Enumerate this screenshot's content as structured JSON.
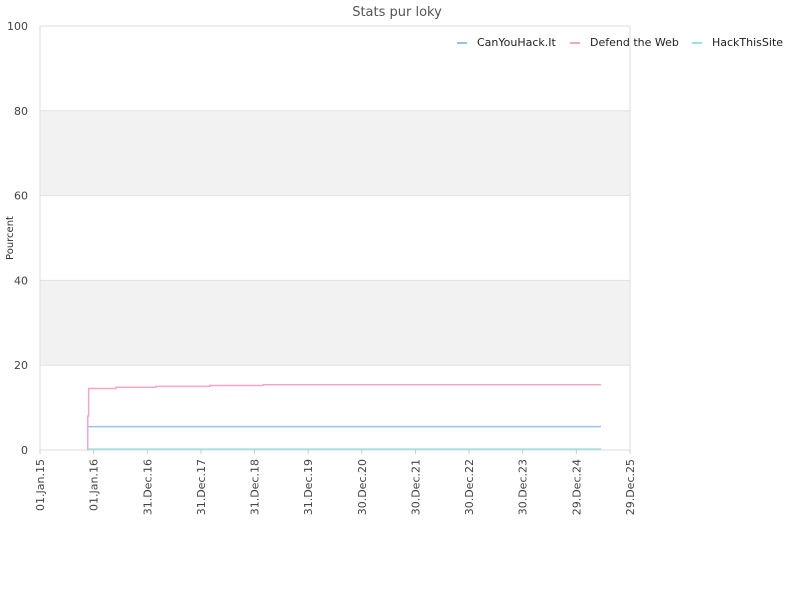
{
  "chart_data": {
    "type": "line",
    "title": "Stats pur loky",
    "xlabel": "",
    "ylabel": "Pourcent",
    "ylim": [
      0,
      100
    ],
    "yticks": [
      0,
      20,
      40,
      60,
      80,
      100
    ],
    "xlim": [
      "2015-01-01",
      "2025-12-29"
    ],
    "xticks": [
      {
        "label": "01.Jan.15",
        "date": "2015-01-01"
      },
      {
        "label": "01.Jan.16",
        "date": "2016-01-01"
      },
      {
        "label": "31.Dec.16",
        "date": "2016-12-31"
      },
      {
        "label": "31.Dec.17",
        "date": "2017-12-31"
      },
      {
        "label": "31.Dec.18",
        "date": "2018-12-31"
      },
      {
        "label": "31.Dec.19",
        "date": "2019-12-31"
      },
      {
        "label": "30.Dec.20",
        "date": "2020-12-30"
      },
      {
        "label": "30.Dec.21",
        "date": "2021-12-30"
      },
      {
        "label": "30.Dec.22",
        "date": "2022-12-30"
      },
      {
        "label": "30.Dec.23",
        "date": "2023-12-30"
      },
      {
        "label": "29.Dec.24",
        "date": "2024-12-29"
      },
      {
        "label": "29.Dec.25",
        "date": "2025-12-29"
      }
    ],
    "grid": true,
    "alternating_bands": true,
    "legend_position": "top-right",
    "series": [
      {
        "name": "CanYouHack.It",
        "color": "#99c2ee",
        "step": true,
        "points": [
          {
            "x": "2015-11-20",
            "y": 0
          },
          {
            "x": "2015-11-22",
            "y": 5.5
          },
          {
            "x": "2025-06-15",
            "y": 5.5
          }
        ]
      },
      {
        "name": "Defend the Web",
        "color": "#f4a6c8",
        "step": true,
        "points": [
          {
            "x": "2015-11-20",
            "y": 0
          },
          {
            "x": "2015-11-22",
            "y": 8
          },
          {
            "x": "2015-11-28",
            "y": 14.5
          },
          {
            "x": "2016-06-01",
            "y": 14.8
          },
          {
            "x": "2017-03-01",
            "y": 15.0
          },
          {
            "x": "2018-03-01",
            "y": 15.2
          },
          {
            "x": "2019-03-01",
            "y": 15.4
          },
          {
            "x": "2025-06-15",
            "y": 15.4
          }
        ]
      },
      {
        "name": "HackThisSite",
        "color": "#99e0d8",
        "step": true,
        "points": [
          {
            "x": "2015-11-22",
            "y": 0.2
          },
          {
            "x": "2025-06-15",
            "y": 0.2
          }
        ]
      }
    ]
  }
}
